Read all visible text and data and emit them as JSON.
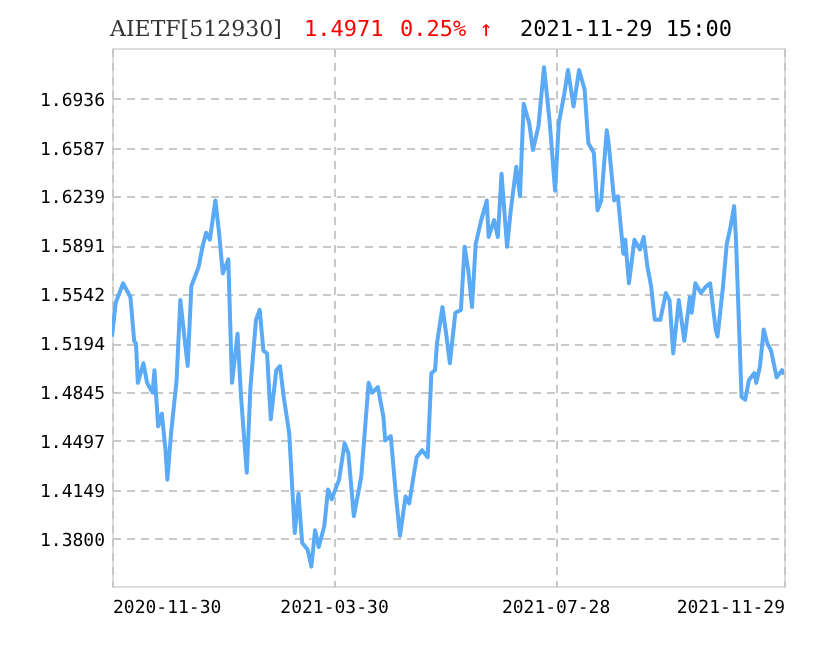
{
  "chart_data": {
    "type": "line",
    "title": "AIETF[512930]",
    "annotations": [
      "1.4971",
      "0.25% ↑",
      "2021-11-29 15:00"
    ],
    "x": [
      "2020-11-30",
      "2020-12-02",
      "2020-12-06",
      "2020-12-10",
      "2020-12-12",
      "2020-12-13",
      "2020-12-14",
      "2020-12-17",
      "2020-12-19",
      "2020-12-22",
      "2020-12-23",
      "2020-12-25",
      "2020-12-27",
      "2020-12-29",
      "2020-12-30",
      "2021-01-01",
      "2021-01-04",
      "2021-01-06",
      "2021-01-10",
      "2021-01-12",
      "2021-01-16",
      "2021-01-18",
      "2021-01-20",
      "2021-01-22",
      "2021-01-25",
      "2021-01-27",
      "2021-01-29",
      "2021-02-01",
      "2021-02-03",
      "2021-02-06",
      "2021-02-08",
      "2021-02-11",
      "2021-02-13",
      "2021-02-16",
      "2021-02-18",
      "2021-02-20",
      "2021-02-22",
      "2021-02-24",
      "2021-02-27",
      "2021-03-01",
      "2021-03-03",
      "2021-03-06",
      "2021-03-09",
      "2021-03-11",
      "2021-03-13",
      "2021-03-16",
      "2021-03-18",
      "2021-03-20",
      "2021-03-22",
      "2021-03-25",
      "2021-03-27",
      "2021-03-29",
      "2021-04-02",
      "2021-04-05",
      "2021-04-07",
      "2021-04-10",
      "2021-04-14",
      "2021-04-18",
      "2021-04-20",
      "2021-04-23",
      "2021-04-26",
      "2021-04-27",
      "2021-04-30",
      "2021-05-03",
      "2021-05-05",
      "2021-05-08",
      "2021-05-10",
      "2021-05-14",
      "2021-05-17",
      "2021-05-20",
      "2021-05-22",
      "2021-05-24",
      "2021-05-25",
      "2021-05-28",
      "2021-05-30",
      "2021-06-01",
      "2021-06-04",
      "2021-06-07",
      "2021-06-09",
      "2021-06-11",
      "2021-06-13",
      "2021-06-15",
      "2021-06-18",
      "2021-06-21",
      "2021-06-22",
      "2021-06-25",
      "2021-06-27",
      "2021-06-29",
      "2021-07-02",
      "2021-07-04",
      "2021-07-07",
      "2021-07-09",
      "2021-07-11",
      "2021-07-14",
      "2021-07-16",
      "2021-07-19",
      "2021-07-22",
      "2021-07-25",
      "2021-07-28",
      "2021-07-30",
      "2021-08-02",
      "2021-08-04",
      "2021-08-07",
      "2021-08-10",
      "2021-08-13",
      "2021-08-15",
      "2021-08-18",
      "2021-08-20",
      "2021-08-22",
      "2021-08-25",
      "2021-08-26",
      "2021-08-29",
      "2021-08-31",
      "2021-09-03",
      "2021-09-04",
      "2021-09-06",
      "2021-09-09",
      "2021-09-12",
      "2021-09-14",
      "2021-09-16",
      "2021-09-18",
      "2021-09-20",
      "2021-09-23",
      "2021-09-26",
      "2021-09-28",
      "2021-09-30",
      "2021-10-03",
      "2021-10-06",
      "2021-10-09",
      "2021-10-10",
      "2021-10-12",
      "2021-10-15",
      "2021-10-18",
      "2021-10-20",
      "2021-10-23",
      "2021-10-24",
      "2021-10-27",
      "2021-10-29",
      "2021-10-31",
      "2021-11-02",
      "2021-11-03",
      "2021-11-06",
      "2021-11-08",
      "2021-11-10",
      "2021-11-13",
      "2021-11-14",
      "2021-11-16",
      "2021-11-18",
      "2021-11-20",
      "2021-11-22",
      "2021-11-25",
      "2021-11-28",
      "2021-11-29"
    ],
    "series": [
      {
        "color": "#5aaaf5",
        "values": [
          1.524,
          1.548,
          1.562,
          1.552,
          1.521,
          1.519,
          1.491,
          1.505,
          1.491,
          1.484,
          1.5,
          1.46,
          1.469,
          1.443,
          1.422,
          1.455,
          1.493,
          1.55,
          1.503,
          1.56,
          1.574,
          1.588,
          1.598,
          1.593,
          1.621,
          1.598,
          1.569,
          1.579,
          1.491,
          1.526,
          1.479,
          1.427,
          1.488,
          1.536,
          1.543,
          1.514,
          1.512,
          1.465,
          1.5,
          1.503,
          1.481,
          1.455,
          1.384,
          1.412,
          1.377,
          1.372,
          1.36,
          1.386,
          1.374,
          1.389,
          1.415,
          1.408,
          1.422,
          1.448,
          1.441,
          1.396,
          1.424,
          1.491,
          1.484,
          1.488,
          1.467,
          1.45,
          1.453,
          1.408,
          1.382,
          1.41,
          1.405,
          1.438,
          1.443,
          1.438,
          1.498,
          1.5,
          1.519,
          1.545,
          1.526,
          1.505,
          1.541,
          1.543,
          1.588,
          1.571,
          1.545,
          1.59,
          1.607,
          1.621,
          1.595,
          1.607,
          1.595,
          1.64,
          1.588,
          1.614,
          1.645,
          1.624,
          1.69,
          1.676,
          1.657,
          1.674,
          1.716,
          1.678,
          1.628,
          1.676,
          1.697,
          1.714,
          1.688,
          1.714,
          1.7,
          1.662,
          1.655,
          1.614,
          1.621,
          1.671,
          1.662,
          1.621,
          1.624,
          1.583,
          1.593,
          1.562,
          1.593,
          1.586,
          1.595,
          1.574,
          1.56,
          1.536,
          1.536,
          1.555,
          1.55,
          1.512,
          1.55,
          1.521,
          1.552,
          1.541,
          1.562,
          1.555,
          1.56,
          1.562,
          1.529,
          1.524,
          1.56,
          1.59,
          1.602,
          1.617,
          1.593,
          1.481,
          1.479,
          1.493,
          1.498,
          1.491,
          1.503,
          1.529,
          1.519,
          1.514,
          1.495,
          1.5,
          1.497
        ]
      }
    ],
    "xlim": [
      "2020-11-30",
      "2021-11-29"
    ],
    "xticks": [
      "2020-11-30",
      "2021-03-30",
      "2021-07-28",
      "2021-11-29"
    ],
    "ylim": [
      1.3462,
      1.7297
    ],
    "yticks": [
      {
        "value": 1.38,
        "label": "1.3800"
      },
      1.4149,
      1.4497,
      1.4845,
      1.5194,
      1.5542,
      1.5891,
      1.6239,
      1.6587,
      1.6936
    ],
    "grid": true,
    "marker": "none",
    "line_style": "solid"
  }
}
